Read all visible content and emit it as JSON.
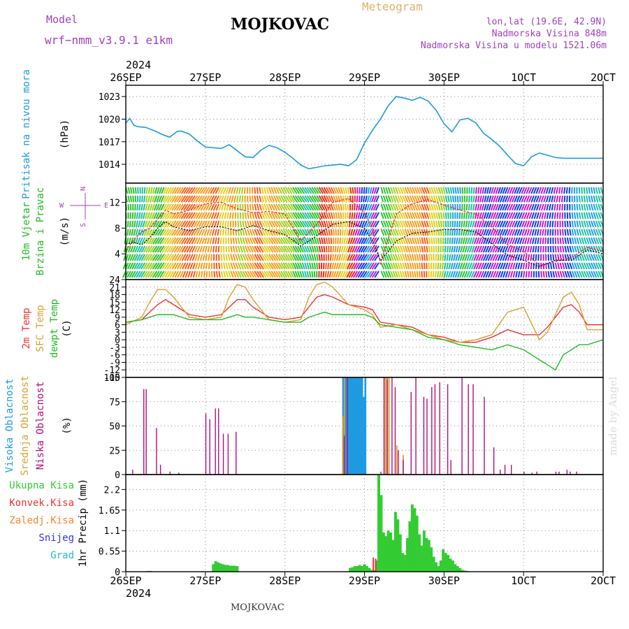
{
  "header": {
    "model_label": "Model",
    "model_name": "wrf−nmm_v3.9.1 e1km",
    "title": "MOJKOVAC",
    "subtitle": "Meteogram",
    "coords": "lon,lat (19.6E, 42.9N)",
    "elevation": "Nadmorska Visina 848m",
    "model_elevation": "Nadmorska Visina u modelu 1521.06m",
    "credit": "made by Angel",
    "footer": "MOJKOVAC"
  },
  "colors": {
    "pressure": "#1e9be0",
    "wind_label": "#22bb22",
    "temp2m": "#ee3333",
    "sfc": "#d9a030",
    "dewpt": "#22bb22",
    "high_cloud": "#1e9be0",
    "mid_cloud": "#d9a030",
    "low_cloud": "#b0107a",
    "total_precip": "#33cc33",
    "conv_precip": "#ee3333",
    "frozen": "#ee8833",
    "snow": "#3333ee",
    "hail": "#22bbbb",
    "header_purple": "#a040c0",
    "header_orange": "#e0b070"
  },
  "chart_data": [
    {
      "type": "line",
      "id": "pressure",
      "ylabel": "Pritisak na nivou mora",
      "unit": "(hPa)",
      "x_date_labels_top_year": "2024",
      "x_date_labels": [
        "26SEP",
        "27SEP",
        "28SEP",
        "29SEP",
        "30SEP",
        "1OCT",
        "2OCT"
      ],
      "yticks": [
        1014,
        1017,
        1020,
        1023
      ],
      "ylim": [
        1011.5,
        1024.5
      ],
      "grid": true,
      "x": [
        0,
        0.05,
        0.1,
        0.15,
        0.25,
        0.35,
        0.45,
        0.55,
        0.65,
        0.7,
        0.8,
        0.9,
        1.0,
        1.1,
        1.2,
        1.3,
        1.4,
        1.5,
        1.6,
        1.7,
        1.8,
        1.9,
        2.0,
        2.1,
        2.2,
        2.3,
        2.4,
        2.5,
        2.6,
        2.7,
        2.8,
        2.9,
        3.0,
        3.1,
        3.2,
        3.3,
        3.4,
        3.5,
        3.6,
        3.7,
        3.8,
        3.9,
        4.0,
        4.1,
        4.2,
        4.3,
        4.4,
        4.5,
        4.6,
        4.7,
        4.8,
        4.9,
        5.0,
        5.1,
        5.2,
        5.3,
        5.4,
        5.5,
        5.6,
        5.7,
        5.8,
        5.9,
        6.0
      ],
      "series": [
        {
          "values": [
            1019.5,
            1020.1,
            1019.2,
            1019.0,
            1018.9,
            1018.5,
            1018.0,
            1017.6,
            1018.4,
            1018.4,
            1018.0,
            1017.1,
            1016.3,
            1016.2,
            1016.1,
            1016.6,
            1015.8,
            1015.0,
            1014.9,
            1015.9,
            1016.5,
            1016.2,
            1015.6,
            1014.8,
            1013.9,
            1013.4,
            1013.6,
            1013.8,
            1013.9,
            1014.0,
            1013.8,
            1014.6,
            1016.8,
            1018.5,
            1020.0,
            1021.8,
            1023.0,
            1022.8,
            1022.5,
            1022.9,
            1022.4,
            1021.2,
            1019.4,
            1018.3,
            1019.9,
            1020.1,
            1019.5,
            1018.1,
            1017.3,
            1016.4,
            1015.2,
            1014.1,
            1013.8,
            1015.0,
            1015.5,
            1015.2,
            1014.9,
            1014.8,
            1014.8,
            1014.8,
            1014.8,
            1014.8,
            1014.8
          ]
        }
      ]
    },
    {
      "type": "line",
      "id": "wind",
      "ylabel": "10m Vjetar Brzina i Pravac",
      "unit": "(m/s)",
      "compass": [
        "N",
        "W",
        "E",
        "S"
      ],
      "yticks": [
        4,
        8,
        12
      ],
      "ylim": [
        0,
        15
      ],
      "grid": true,
      "x": [
        0,
        0.1,
        0.2,
        0.3,
        0.4,
        0.5,
        0.6,
        0.8,
        1.0,
        1.2,
        1.4,
        1.6,
        1.8,
        2.0,
        2.2,
        2.4,
        2.6,
        2.8,
        3.0,
        3.1,
        3.2,
        3.3,
        3.4,
        3.6,
        3.8,
        4.0,
        4.2,
        4.4,
        4.6,
        4.8,
        5.0,
        5.2,
        5.4,
        5.6,
        5.8,
        6.0
      ],
      "series": [
        {
          "name": "mean",
          "values": [
            5.5,
            5.8,
            5.4,
            6.5,
            8.0,
            9.0,
            8.2,
            7.6,
            8.2,
            8.2,
            7.6,
            8.4,
            7.6,
            7.0,
            5.2,
            6.8,
            8.6,
            9.0,
            8.0,
            6.0,
            3.0,
            4.4,
            6.0,
            7.2,
            7.4,
            7.8,
            7.8,
            7.4,
            5.6,
            3.8,
            3.0,
            2.0,
            3.0,
            3.0,
            4.6,
            4.0
          ]
        },
        {
          "name": "gust",
          "values": [
            4.5,
            6.2,
            7.4,
            8.0,
            9.4,
            10.8,
            10.2,
            10.8,
            11.8,
            12.0,
            11.0,
            10.4,
            10.6,
            10.2,
            6.0,
            8.6,
            12.0,
            12.6,
            10.4,
            8.0,
            2.5,
            6.4,
            10.2,
            11.8,
            12.4,
            11.6,
            10.8,
            10.2,
            8.2,
            5.4,
            4.4,
            2.2,
            2.8,
            3.4,
            5.0,
            4.4
          ]
        }
      ],
      "wind_direction_colors": [
        "#1040e0",
        "#20a0e0",
        "#20c0a0",
        "#30c030",
        "#a0d020",
        "#e0d020",
        "#f0a020",
        "#f06020",
        "#e03020",
        "#c020c0"
      ]
    },
    {
      "type": "line",
      "id": "temperature",
      "ylabel": [
        "2m Temp",
        "SFC Temp",
        "dewpt Temp"
      ],
      "unit": "(C)",
      "yticks": [
        -15,
        -12,
        -9,
        -6,
        -3,
        0,
        3,
        6,
        9,
        12,
        15,
        18,
        21,
        24
      ],
      "ylim": [
        -15,
        24
      ],
      "grid": true,
      "x": [
        0,
        0.2,
        0.3,
        0.4,
        0.5,
        0.6,
        0.8,
        1.0,
        1.2,
        1.3,
        1.4,
        1.5,
        1.6,
        1.8,
        2.0,
        2.2,
        2.3,
        2.4,
        2.5,
        2.6,
        2.8,
        3.0,
        3.1,
        3.2,
        3.4,
        3.6,
        3.8,
        4.0,
        4.2,
        4.4,
        4.6,
        4.8,
        5.0,
        5.2,
        5.3,
        5.4,
        5.5,
        5.6,
        5.7,
        5.8,
        6.0
      ],
      "series": [
        {
          "name": "2m Temp",
          "values": [
            7,
            8,
            11,
            14,
            16,
            14,
            10,
            9,
            10,
            13,
            16,
            16,
            13,
            9,
            8,
            9,
            13,
            17,
            18,
            17,
            14,
            13,
            12,
            7,
            6,
            5,
            2,
            1,
            -1,
            -1,
            1,
            4,
            2,
            2,
            5,
            9,
            13,
            14,
            11,
            6,
            6
          ]
        },
        {
          "name": "SFC Temp",
          "values": [
            6,
            9,
            15,
            20,
            20,
            17,
            9,
            8,
            9,
            17,
            22,
            21,
            16,
            8,
            7,
            8,
            17,
            22,
            23,
            21,
            14,
            12,
            10,
            5,
            6,
            4,
            2,
            0,
            -1,
            0,
            2,
            11,
            13,
            0,
            3,
            10,
            17,
            19,
            14,
            4,
            4
          ]
        },
        {
          "name": "dewpt Temp",
          "values": [
            7,
            8,
            9,
            10,
            10,
            10,
            8,
            8,
            8,
            9,
            10,
            9,
            9,
            8,
            7,
            7,
            9,
            10,
            11,
            10,
            10,
            10,
            9,
            6,
            5,
            4,
            1,
            0,
            -2,
            -3,
            -4,
            -2,
            -4,
            -8,
            -10,
            -12,
            -6,
            -4,
            -2,
            -2,
            0
          ]
        }
      ]
    },
    {
      "type": "bar",
      "id": "cloud",
      "ylabel": [
        "Visoka Oblacnost",
        "Srednja Oblacnost",
        "Niska Oblacnost"
      ],
      "unit": "(%)",
      "yticks": [
        0,
        25,
        50,
        75,
        100
      ],
      "ylim": [
        0,
        100
      ],
      "grid": true,
      "series": [
        {
          "name": "Visoka Oblacnost",
          "x": [
            2.72,
            2.74,
            2.76,
            2.78,
            2.8,
            2.82,
            2.84,
            2.86,
            2.88,
            2.9,
            2.92,
            2.94,
            2.96,
            2.98,
            3.0
          ],
          "values": [
            100,
            100,
            100,
            100,
            100,
            100,
            100,
            100,
            100,
            100,
            100,
            100,
            100,
            80,
            100
          ]
        },
        {
          "name": "Srednja Oblacnost",
          "x": [
            2.72,
            2.74,
            3.24,
            3.26,
            3.28,
            3.3,
            3.4,
            3.48
          ],
          "values": [
            60,
            100,
            100,
            100,
            100,
            100,
            30,
            20
          ]
        },
        {
          "name": "Niska Oblacnost",
          "x": [
            0.08,
            0.22,
            0.25,
            0.38,
            0.43,
            0.55,
            0.66,
            1.0,
            1.05,
            1.12,
            1.16,
            1.22,
            1.28,
            1.38,
            2.74,
            2.78,
            3.2,
            3.24,
            3.28,
            3.34,
            3.38,
            3.42,
            3.48,
            3.58,
            3.64,
            3.74,
            3.78,
            3.84,
            3.88,
            3.94,
            4.04,
            4.08,
            4.22,
            4.3,
            4.36,
            4.5,
            4.62,
            4.7,
            4.76,
            4.84,
            5.0,
            5.1,
            5.16,
            5.4,
            5.44,
            5.54,
            5.58,
            5.66
          ],
          "values": [
            5,
            88,
            88,
            48,
            10,
            3,
            2,
            63,
            57,
            68,
            68,
            42,
            42,
            44,
            40,
            100,
            3,
            100,
            98,
            100,
            90,
            25,
            15,
            85,
            100,
            80,
            78,
            90,
            93,
            95,
            93,
            15,
            100,
            93,
            93,
            80,
            28,
            5,
            10,
            10,
            3,
            2,
            3,
            3,
            3,
            5,
            3,
            3
          ]
        }
      ]
    },
    {
      "type": "bar",
      "id": "precip",
      "ylabel": "1hr Precip",
      "unit": "(mm)",
      "legend": [
        "Ukupna Kisa",
        "Konvek.Kisa",
        "Zaledj.Kisa",
        "Snijeg",
        "Grad"
      ],
      "yticks": [
        0,
        0.55,
        1.1,
        1.65,
        2.2
      ],
      "ylim": [
        0,
        2.6
      ],
      "grid": true,
      "series": [
        {
          "name": "Ukupna Kisa",
          "x": [
            0.28,
            0.31,
            1.1,
            1.13,
            1.16,
            1.19,
            1.22,
            1.25,
            1.28,
            1.31,
            1.34,
            1.37,
            1.4,
            2.82,
            2.85,
            2.88,
            2.91,
            2.94,
            2.97,
            3.0,
            3.03,
            3.06,
            3.09,
            3.12,
            3.15,
            3.18,
            3.21,
            3.24,
            3.27,
            3.3,
            3.33,
            3.36,
            3.39,
            3.42,
            3.45,
            3.48,
            3.51,
            3.54,
            3.57,
            3.6,
            3.63,
            3.66,
            3.69,
            3.72,
            3.75,
            3.78,
            3.81,
            3.84,
            3.87,
            3.9,
            3.93,
            3.96,
            3.99,
            4.02,
            4.05,
            4.08,
            4.11,
            4.14,
            4.17,
            4.2,
            4.23,
            4.26,
            4.29,
            4.32
          ],
          "values": [
            0.02,
            0.02,
            0.2,
            0.28,
            0.25,
            0.22,
            0.2,
            0.18,
            0.18,
            0.16,
            0.16,
            0.16,
            0.15,
            0.1,
            0.12,
            0.15,
            0.15,
            0.18,
            0.15,
            0.2,
            0.15,
            0.1,
            0.05,
            0.04,
            0.3,
            2.58,
            2.05,
            1.05,
            0.95,
            1.1,
            1.05,
            0.85,
            1.6,
            1.4,
            1.0,
            0.5,
            0.45,
            0.9,
            1.35,
            1.8,
            1.7,
            1.5,
            1.0,
            0.7,
            1.1,
            0.9,
            0.85,
            0.65,
            0.4,
            0.25,
            0.15,
            0.3,
            0.6,
            0.5,
            0.45,
            0.35,
            0.3,
            0.2,
            0.15,
            0.1,
            0.05,
            0.03,
            0.02,
            0.01
          ]
        },
        {
          "name": "Konvek.Kisa",
          "x": [
            3.12,
            3.15
          ],
          "values": [
            0.38,
            0.35
          ]
        }
      ]
    }
  ]
}
